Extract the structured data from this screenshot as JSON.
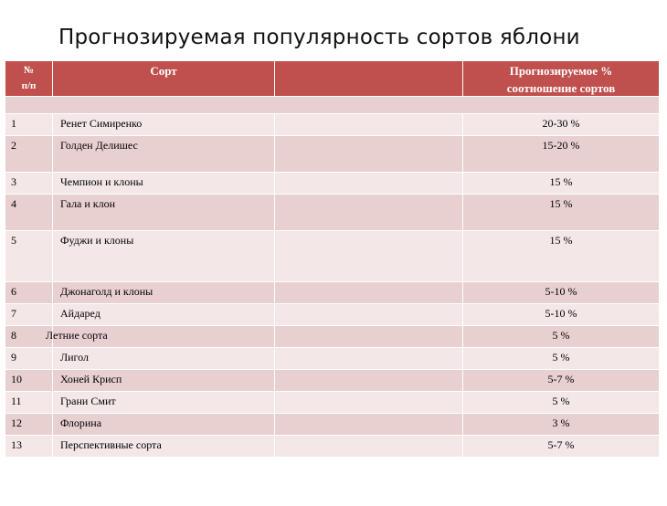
{
  "title": "Прогнозируемая популярность сортов яблони",
  "header": {
    "num_line1": "№",
    "num_line2": "п/п",
    "variety": "Сорт",
    "share_line1": "Прогнозируемое %",
    "share_line2": "соотношение сортов"
  },
  "rows": [
    {
      "num": "1",
      "name": "Ренет Симиренко",
      "share": "20-30 %"
    },
    {
      "num": "2",
      "name": "Голден Делишес",
      "share": "15-20 %"
    },
    {
      "num": "3",
      "name": "Чемпион и клоны",
      "share": "15 %"
    },
    {
      "num": "4",
      "name": "Гала и клон",
      "share": "15 %"
    },
    {
      "num": "5",
      "name": "Фуджи и клоны",
      "share": "15 %"
    },
    {
      "num": "6",
      "name": "Джонаголд и клоны",
      "share": "5-10 %"
    },
    {
      "num": "7",
      "name": "Айдаред",
      "share": "5-10 %"
    },
    {
      "num": "8",
      "name": "Летние сорта",
      "share": "5 %"
    },
    {
      "num": "9",
      "name": "Лигол",
      "share": "5 %"
    },
    {
      "num": "10",
      "name": "Хоней Крисп",
      "share": "5-7 %"
    },
    {
      "num": "11",
      "name": "Грани Смит",
      "share": "5 %"
    },
    {
      "num": "12",
      "name": "Флорина",
      "share": "3 %"
    },
    {
      "num": "13",
      "name": "Перспективные сорта",
      "share": "5-7 %"
    }
  ]
}
